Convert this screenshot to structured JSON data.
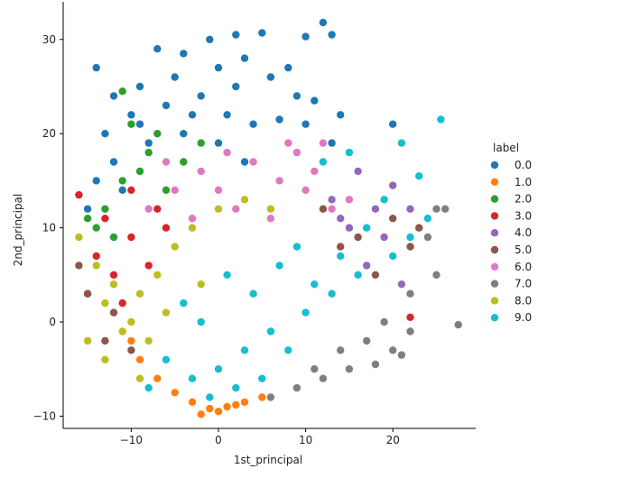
{
  "chart_data": {
    "type": "scatter",
    "xlabel": "1st_principal",
    "ylabel": "2nd_principal",
    "xlim": [
      -17.8,
      29.5
    ],
    "ylim": [
      -11.3,
      34.0
    ],
    "x_ticks": [
      -10,
      0,
      10,
      20
    ],
    "x_tick_labels": [
      "−10",
      "0",
      "10",
      "20"
    ],
    "y_ticks": [
      -10,
      0,
      10,
      20,
      30
    ],
    "y_tick_labels": [
      "−10",
      "0",
      "10",
      "20",
      "30"
    ],
    "grid": false,
    "legend": {
      "title": "label",
      "placement": "right"
    },
    "series": [
      {
        "name": "0.0",
        "color": "#1f77b4",
        "points": [
          [
            -14,
            27
          ],
          [
            -7,
            29
          ],
          [
            -4,
            28.5
          ],
          [
            -1,
            30
          ],
          [
            2,
            30.5
          ],
          [
            5,
            30.7
          ],
          [
            10,
            30.3
          ],
          [
            12,
            31.8
          ],
          [
            13,
            30.5
          ],
          [
            -12,
            24
          ],
          [
            -9,
            25
          ],
          [
            -5,
            26
          ],
          [
            0,
            27
          ],
          [
            3,
            28
          ],
          [
            6,
            26
          ],
          [
            9,
            24
          ],
          [
            11,
            23.5
          ],
          [
            14,
            22
          ],
          [
            -13,
            20
          ],
          [
            -10,
            22
          ],
          [
            -6,
            23
          ],
          [
            -2,
            24
          ],
          [
            1,
            22
          ],
          [
            4,
            21
          ],
          [
            7,
            21.5
          ],
          [
            10,
            21
          ],
          [
            13,
            19
          ],
          [
            -14,
            15
          ],
          [
            -12,
            17
          ],
          [
            -8,
            19
          ],
          [
            -4,
            20
          ],
          [
            0,
            19
          ],
          [
            3,
            17
          ],
          [
            -15,
            12
          ],
          [
            -11,
            14
          ],
          [
            20,
            21
          ],
          [
            -9,
            21
          ],
          [
            -3,
            22
          ],
          [
            2,
            25
          ],
          [
            8,
            27
          ]
        ]
      },
      {
        "name": "1.0",
        "color": "#ff7f0e",
        "points": [
          [
            -7,
            -6
          ],
          [
            -5,
            -7.5
          ],
          [
            -3,
            -8.5
          ],
          [
            -1,
            -9.2
          ],
          [
            1,
            -9
          ],
          [
            3,
            -8.5
          ],
          [
            5,
            -8
          ],
          [
            -9,
            -4
          ],
          [
            -10,
            -2
          ],
          [
            -2,
            -9.8
          ],
          [
            0,
            -9.5
          ],
          [
            2,
            -8.8
          ]
        ]
      },
      {
        "name": "2.0",
        "color": "#2ca02c",
        "points": [
          [
            -11,
            24.5
          ],
          [
            -10,
            21
          ],
          [
            -7,
            20
          ],
          [
            -4,
            17
          ],
          [
            -14,
            10
          ],
          [
            -13,
            12
          ],
          [
            -11,
            15
          ],
          [
            -9,
            16
          ],
          [
            -6,
            14
          ],
          [
            -12,
            9
          ],
          [
            -15,
            11
          ],
          [
            -8,
            18
          ],
          [
            -2,
            19
          ]
        ]
      },
      {
        "name": "3.0",
        "color": "#d62728",
        "points": [
          [
            -16,
            13.5
          ],
          [
            -13,
            11
          ],
          [
            -10,
            14
          ],
          [
            -7,
            12
          ],
          [
            -14,
            7
          ],
          [
            -12,
            5
          ],
          [
            -10,
            9
          ],
          [
            -8,
            6
          ],
          [
            -15,
            3
          ],
          [
            22,
            0.5
          ],
          [
            -11,
            2
          ],
          [
            -6,
            10
          ]
        ]
      },
      {
        "name": "4.0",
        "color": "#9467bd",
        "points": [
          [
            20,
            14.5
          ],
          [
            18,
            12
          ],
          [
            15,
            10
          ],
          [
            21,
            4
          ],
          [
            17,
            6
          ],
          [
            19,
            9
          ],
          [
            13,
            13
          ],
          [
            22,
            12
          ],
          [
            16,
            16
          ],
          [
            14,
            11
          ]
        ]
      },
      {
        "name": "5.0",
        "color": "#8c564b",
        "points": [
          [
            -16,
            6
          ],
          [
            -15,
            3
          ],
          [
            -13,
            -2
          ],
          [
            -12,
            1
          ],
          [
            22,
            8
          ],
          [
            23,
            10
          ],
          [
            20,
            11
          ],
          [
            16,
            9
          ],
          [
            14,
            8
          ],
          [
            -10,
            -3
          ],
          [
            18,
            5
          ],
          [
            12,
            12
          ]
        ]
      },
      {
        "name": "6.0",
        "color": "#e377c2",
        "points": [
          [
            -5,
            14
          ],
          [
            -2,
            16
          ],
          [
            1,
            18
          ],
          [
            4,
            17
          ],
          [
            7,
            15
          ],
          [
            10,
            14
          ],
          [
            13,
            12
          ],
          [
            -8,
            12
          ],
          [
            -3,
            11
          ],
          [
            2,
            12
          ],
          [
            6,
            11
          ],
          [
            9,
            18
          ],
          [
            11,
            16
          ],
          [
            15,
            13
          ],
          [
            0,
            14
          ],
          [
            -6,
            17
          ],
          [
            12,
            19
          ],
          [
            8,
            19
          ]
        ]
      },
      {
        "name": "7.0",
        "color": "#7f7f7f",
        "points": [
          [
            25,
            5
          ],
          [
            27.5,
            -0.3
          ],
          [
            26,
            12
          ],
          [
            24,
            9
          ],
          [
            22,
            3
          ],
          [
            20,
            -3
          ],
          [
            18,
            -4.5
          ],
          [
            15,
            -5
          ],
          [
            12,
            -6
          ],
          [
            9,
            -7
          ],
          [
            6,
            -8
          ],
          [
            22,
            -1
          ],
          [
            17,
            -2
          ],
          [
            19,
            0
          ],
          [
            21,
            -3.5
          ],
          [
            14,
            -3
          ],
          [
            11,
            -5
          ],
          [
            25,
            12
          ]
        ]
      },
      {
        "name": "8.0",
        "color": "#bcbd22",
        "points": [
          [
            -16,
            9
          ],
          [
            -14,
            6
          ],
          [
            -13,
            2
          ],
          [
            -11,
            -1
          ],
          [
            -9,
            3
          ],
          [
            -7,
            5
          ],
          [
            -5,
            8
          ],
          [
            -3,
            10
          ],
          [
            0,
            12
          ],
          [
            3,
            13
          ],
          [
            6,
            12
          ],
          [
            -10,
            0
          ],
          [
            -8,
            -2
          ],
          [
            -12,
            4
          ],
          [
            -15,
            -2
          ],
          [
            -6,
            1
          ],
          [
            -2,
            4
          ],
          [
            -13,
            -4
          ],
          [
            -9,
            -6
          ]
        ]
      },
      {
        "name": "9.0",
        "color": "#17becf",
        "points": [
          [
            25.5,
            21.5
          ],
          [
            21,
            19
          ],
          [
            23,
            15.5
          ],
          [
            24,
            11
          ],
          [
            22,
            9
          ],
          [
            20,
            7
          ],
          [
            16,
            5
          ],
          [
            13,
            3
          ],
          [
            10,
            1
          ],
          [
            6,
            -1
          ],
          [
            3,
            -3
          ],
          [
            0,
            -5
          ],
          [
            -3,
            -6
          ],
          [
            -6,
            -4
          ],
          [
            -1,
            -8
          ],
          [
            2,
            -7
          ],
          [
            5,
            -6
          ],
          [
            8,
            -3
          ],
          [
            11,
            4
          ],
          [
            14,
            7
          ],
          [
            17,
            10
          ],
          [
            19,
            13
          ],
          [
            15,
            18
          ],
          [
            12,
            17
          ],
          [
            -4,
            2
          ],
          [
            1,
            5
          ],
          [
            4,
            3
          ],
          [
            7,
            6
          ],
          [
            -8,
            -7
          ],
          [
            -2,
            0
          ],
          [
            9,
            8
          ]
        ]
      }
    ]
  }
}
